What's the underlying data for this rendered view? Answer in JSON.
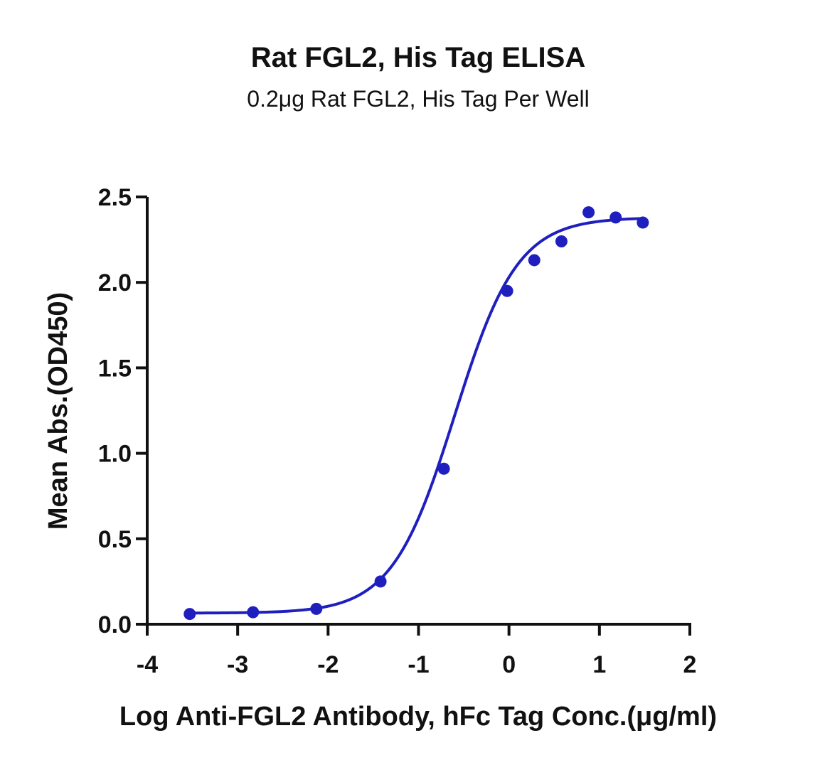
{
  "chart_data": {
    "type": "scatter",
    "title": "Rat FGL2, His Tag ELISA",
    "subtitle": "0.2μg Rat FGL2, His Tag Per Well",
    "xlabel": "Log Anti-FGL2 Antibody, hFc Tag Conc.(μg/ml)",
    "ylabel": "Mean Abs.(OD450)",
    "xlim": [
      -4,
      2
    ],
    "ylim": [
      0,
      2.5
    ],
    "xticks": [
      -4,
      -3,
      -2,
      -1,
      0,
      1,
      2
    ],
    "xtick_labels": [
      "-4",
      "-3",
      "-2",
      "-1",
      "0",
      "1",
      "2"
    ],
    "yticks": [
      0,
      0.5,
      1.0,
      1.5,
      2.0,
      2.5
    ],
    "ytick_labels": [
      "0.0",
      "0.5",
      "1.0",
      "1.5",
      "2.0",
      "2.5"
    ],
    "grid": false,
    "color": "#1f1fbf",
    "series": [
      {
        "x": [
          -3.53,
          -2.83,
          -2.13,
          -1.42,
          -0.72,
          -0.02,
          0.28,
          0.58,
          0.88,
          1.18,
          1.48
        ],
        "y": [
          0.06,
          0.07,
          0.09,
          0.25,
          0.91,
          1.95,
          2.13,
          2.24,
          2.41,
          2.38,
          2.35
        ],
        "fit": {
          "model": "4PL",
          "bottom": 0.065,
          "top": 2.38,
          "logEC50": -0.6,
          "hill": 1.25
        }
      }
    ]
  }
}
